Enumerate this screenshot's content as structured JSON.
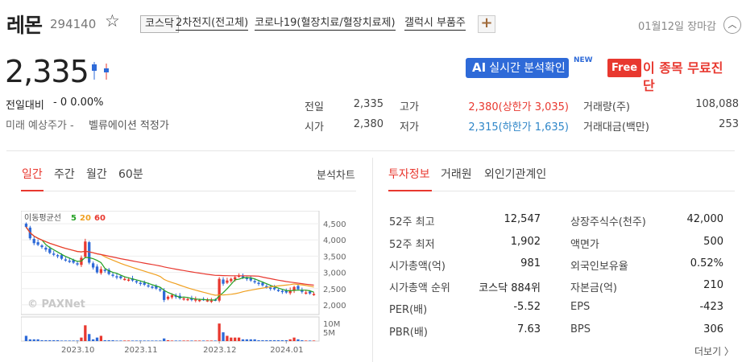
{
  "stock": {
    "name": "레몬",
    "code": "294140",
    "market": "코스닥",
    "themes": [
      "2차전지(전고체)",
      "코로나19(혈장치료/혈장치료제)",
      "갤럭시 부품주"
    ],
    "market_status": "01월12일 장마감",
    "price": "2,335",
    "change_label": "전일대비",
    "change_value": "- 0 0.00%",
    "expected_label": "미래 예상주가 -",
    "valuation_link": "벨류에이션 적정가"
  },
  "buttons": {
    "ai_prefix": "AI",
    "ai_label": "실시간 분석확인",
    "new_badge": "NEW",
    "free_tag": "Free",
    "free_label": "이 종목 무료진단",
    "plus": "+",
    "star": "☆",
    "collapse": "︿"
  },
  "quote": {
    "prev_close": {
      "label": "전일",
      "value": "2,335"
    },
    "open": {
      "label": "시가",
      "value": "2,380"
    },
    "high": {
      "label": "고가",
      "value": "2,380(상한가 3,035)"
    },
    "low": {
      "label": "저가",
      "value": "2,315(하한가 1,635)"
    },
    "volume": {
      "label": "거래량(주)",
      "value": "108,088"
    },
    "amount": {
      "label": "거래대금(백만)",
      "value": "253"
    }
  },
  "chart_tabs": [
    "일간",
    "주간",
    "월간",
    "60분"
  ],
  "chart_link": "분석차트",
  "info_tabs": [
    "투자정보",
    "거래원",
    "외인기관계인"
  ],
  "stats_left": [
    {
      "label": "52주 최고",
      "value": "12,547"
    },
    {
      "label": "52주 최저",
      "value": "1,902"
    },
    {
      "label": "시가총액(억)",
      "value": "981"
    },
    {
      "label": "시가총액 순위",
      "value": "코스닥 884위"
    },
    {
      "label": "PER(배)",
      "value": "-5.52"
    },
    {
      "label": "PBR(배)",
      "value": "7.63"
    }
  ],
  "stats_right": [
    {
      "label": "상장주식수(천주)",
      "value": "42,000"
    },
    {
      "label": "액면가",
      "value": "500"
    },
    {
      "label": "외국인보유율",
      "value": "0.52%"
    },
    {
      "label": "자본금(억)",
      "value": "210"
    },
    {
      "label": "EPS",
      "value": "-423"
    },
    {
      "label": "BPS",
      "value": "306"
    }
  ],
  "more_link": "더보기 〉",
  "chart_data": {
    "type": "candlestick",
    "ma_legend": {
      "title": "이동평균선",
      "items": [
        {
          "label": "5",
          "color": "#22a022"
        },
        {
          "label": "20",
          "color": "#f0a020"
        },
        {
          "label": "60",
          "color": "#e8382f"
        }
      ]
    },
    "watermark": "© PAXNet",
    "price_ticks": [
      "4,500",
      "4,000",
      "3,500",
      "3,000",
      "2,500",
      "2,000"
    ],
    "price_range": [
      1800,
      4700
    ],
    "volume_ticks": [
      "10M",
      "5M"
    ],
    "volume_range": [
      0,
      11
    ],
    "x_ticks": [
      {
        "label": "2023.10",
        "index": 13
      },
      {
        "label": "2023.11",
        "index": 29
      },
      {
        "label": "2023.12",
        "index": 49
      },
      {
        "label": "2024.01",
        "index": 66
      }
    ],
    "colors": {
      "up": "#e8382f",
      "down": "#2e6ad8"
    },
    "close": [
      4400,
      4050,
      3900,
      3850,
      3780,
      3700,
      3600,
      3550,
      3500,
      3420,
      3380,
      3350,
      3300,
      3250,
      3450,
      3950,
      3300,
      3150,
      3000,
      3100,
      3050,
      2950,
      2900,
      2850,
      2820,
      2800,
      2780,
      2750,
      2700,
      2650,
      2620,
      2580,
      2550,
      2500,
      2450,
      2150,
      2250,
      2300,
      2250,
      2200,
      2200,
      2180,
      2150,
      2170,
      2150,
      2160,
      2140,
      2130,
      2150,
      2800,
      2650,
      2750,
      2800,
      2850,
      2900,
      2850,
      2800,
      2750,
      2700,
      2650,
      2600,
      2550,
      2500,
      2480,
      2450,
      2400,
      2380,
      2450,
      2550,
      2480,
      2400,
      2380,
      2350,
      2335
    ],
    "volume": [
      3,
      1,
      1,
      1,
      0.5,
      0.5,
      0.5,
      0.5,
      0.5,
      0.3,
      0.3,
      0.3,
      0.3,
      0.3,
      2,
      9,
      4,
      1,
      2,
      3,
      0.5,
      0.5,
      0.5,
      0.3,
      0.3,
      0.3,
      0.3,
      0.3,
      0.3,
      0.3,
      0.3,
      0.3,
      0.3,
      0.3,
      0.3,
      1.5,
      0.5,
      0.3,
      0.3,
      0.3,
      0.3,
      0.3,
      0.3,
      0.3,
      0.3,
      0.3,
      0.3,
      0.3,
      0.3,
      10,
      5,
      3,
      2,
      2,
      2,
      1,
      1,
      1,
      1,
      0.5,
      0.5,
      0.5,
      0.5,
      0.5,
      0.5,
      0.5,
      0.5,
      1,
      2,
      1,
      0.5,
      0.3,
      0.3,
      0.3
    ]
  }
}
